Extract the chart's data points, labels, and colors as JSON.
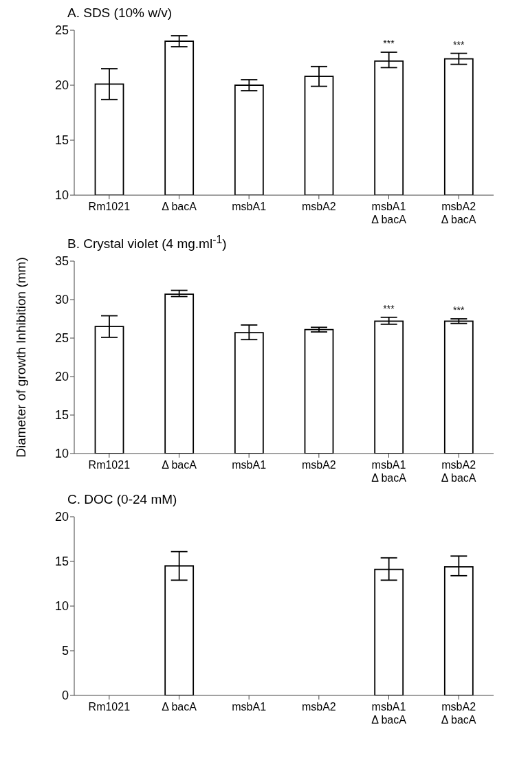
{
  "chart_data": [
    {
      "type": "bar",
      "title": "A. SDS (10% w/v)",
      "categories": [
        "Rm1021",
        "Δ bacA",
        "msbA1",
        "msbA2",
        "msbA1\nΔ bacA",
        "msbA2\nΔ bacA"
      ],
      "values": [
        20.1,
        24.0,
        20.0,
        20.8,
        22.2,
        22.4
      ],
      "errors": [
        [
          18.7,
          21.5
        ],
        [
          23.5,
          24.5
        ],
        [
          19.5,
          20.5
        ],
        [
          19.9,
          21.7
        ],
        [
          21.6,
          23.0
        ],
        [
          21.9,
          22.9
        ]
      ],
      "color": "#ffffff",
      "ylim": [
        10,
        25
      ],
      "yticks": [
        10,
        15,
        20,
        25
      ],
      "grid": false,
      "legend": false,
      "annotations": [
        {
          "text": "***",
          "x": "msbA1\nΔ bacA",
          "y": 22.2
        },
        {
          "text": "***",
          "x": "msbA2\nΔ bacA",
          "y": 22.4
        }
      ]
    },
    {
      "type": "bar",
      "title": "B. Crystal violet (4 mg.ml$^{-1}$)",
      "ylabel": "Diameter of growth Inhibition (mm)",
      "categories": [
        "Rm1021",
        "Δ bacA",
        "msbA1",
        "msbA2",
        "msbA1\nΔ bacA",
        "msbA2\nΔ bacA"
      ],
      "values": [
        26.5,
        30.7,
        25.7,
        26.1,
        27.2,
        27.2
      ],
      "errors": [
        [
          25.1,
          27.9
        ],
        [
          30.4,
          31.2
        ],
        [
          24.8,
          26.7
        ],
        [
          25.8,
          26.4
        ],
        [
          26.8,
          27.7
        ],
        [
          26.9,
          27.5
        ]
      ],
      "color": "#ffffff",
      "ylim": [
        10,
        35
      ],
      "yticks": [
        10,
        15,
        20,
        25,
        30,
        35
      ],
      "grid": false,
      "legend": false,
      "annotations": [
        {
          "text": "***",
          "x": "msbA1\nΔ bacA",
          "y": 27.2
        },
        {
          "text": "***",
          "x": "msbA2\nΔ bacA",
          "y": 27.2
        }
      ]
    },
    {
      "type": "bar",
      "title": "C. DOC (0-24 mM)",
      "categories": [
        "Rm1021",
        "Δ bacA",
        "msbA1",
        "msbA2",
        "msbA1\nΔ bacA",
        "msbA2\nΔ bacA"
      ],
      "values": [
        0,
        14.5,
        0,
        0,
        14.1,
        14.4
      ],
      "errors": [
        null,
        [
          12.9,
          16.1
        ],
        null,
        null,
        [
          12.9,
          15.4
        ],
        [
          13.4,
          15.6
        ]
      ],
      "color": "#ffffff",
      "ylim": [
        0,
        20
      ],
      "yticks": [
        0,
        5,
        10,
        15,
        20
      ],
      "grid": false,
      "legend": false
    }
  ]
}
